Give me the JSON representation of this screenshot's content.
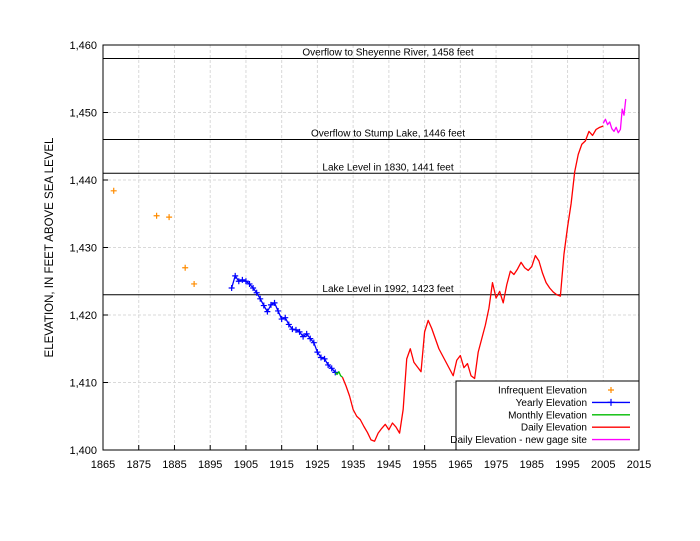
{
  "chart_data": {
    "type": "line",
    "title": "",
    "xlabel": "",
    "ylabel": "ELEVATION, IN FEET ABOVE SEA LEVEL",
    "xlim": [
      1865,
      2015
    ],
    "ylim": [
      1400,
      1460
    ],
    "x_ticks": [
      "1865",
      "1875",
      "1885",
      "1895",
      "1905",
      "1915",
      "1925",
      "1935",
      "1945",
      "1955",
      "1965",
      "1975",
      "1985",
      "1995",
      "2005",
      "2015"
    ],
    "y_ticks": [
      "1,400",
      "1,410",
      "1,420",
      "1,430",
      "1,440",
      "1,450",
      "1,460"
    ],
    "grid": true,
    "legend_position": "bottom-right",
    "reference_lines": [
      {
        "y": 1458,
        "label": "Overflow to Sheyenne River, 1458 feet"
      },
      {
        "y": 1446,
        "label": "Overflow to Stump Lake, 1446 feet"
      },
      {
        "y": 1441,
        "label": "Lake Level in 1830, 1441 feet"
      },
      {
        "y": 1423,
        "label": "Lake Level in 1992, 1423 feet"
      }
    ],
    "series": [
      {
        "name": "Infrequent Elevation",
        "color": "#ff8c00",
        "style": "plus-markers",
        "x": [
          1868,
          1880,
          1883.5,
          1888,
          1890.5
        ],
        "y": [
          1438.4,
          1434.7,
          1434.5,
          1427.0,
          1424.6
        ]
      },
      {
        "name": "Yearly Elevation",
        "color": "#0000ff",
        "style": "line-plus",
        "x": [
          1901,
          1902,
          1903,
          1904,
          1905,
          1906,
          1907,
          1908,
          1909,
          1910,
          1911,
          1912,
          1913,
          1914,
          1915,
          1916,
          1917,
          1918,
          1919,
          1920,
          1921,
          1922,
          1923,
          1924,
          1925,
          1926,
          1927,
          1928,
          1929,
          1930
        ],
        "y": [
          1424.0,
          1425.8,
          1425.0,
          1425.2,
          1425.0,
          1424.6,
          1424.0,
          1423.3,
          1422.4,
          1421.4,
          1420.5,
          1421.5,
          1421.8,
          1420.6,
          1419.4,
          1419.6,
          1418.6,
          1417.9,
          1417.8,
          1417.5,
          1416.8,
          1417.2,
          1416.5,
          1415.9,
          1414.5,
          1413.7,
          1413.5,
          1412.6,
          1412.1,
          1411.5
        ]
      },
      {
        "name": "Monthly Elevation",
        "color": "#00bb00",
        "style": "line",
        "x": [
          1930,
          1930.5,
          1931,
          1931.5,
          1932
        ],
        "y": [
          1411.5,
          1411.2,
          1411.6,
          1411.0,
          1410.8
        ]
      },
      {
        "name": "Daily Elevation",
        "color": "#ff0000",
        "style": "line",
        "x": [
          1932,
          1933,
          1934,
          1935,
          1936,
          1937,
          1938,
          1939,
          1940,
          1941,
          1942,
          1943,
          1944,
          1945,
          1946,
          1947,
          1948,
          1949,
          1950,
          1951,
          1952,
          1953,
          1954,
          1955,
          1956,
          1957,
          1958,
          1959,
          1960,
          1961,
          1962,
          1963,
          1964,
          1965,
          1966,
          1967,
          1968,
          1969,
          1970,
          1971,
          1972,
          1973,
          1974,
          1975,
          1976,
          1977,
          1978,
          1979,
          1980,
          1981,
          1982,
          1983,
          1984,
          1985,
          1986,
          1987,
          1988,
          1989,
          1990,
          1991,
          1992,
          1993,
          1994,
          1995,
          1996,
          1997,
          1998,
          1999,
          2000,
          2001,
          2002,
          2003,
          2004,
          2005
        ],
        "y": [
          1410.8,
          1409.5,
          1408.0,
          1406.0,
          1405.0,
          1404.5,
          1403.5,
          1402.6,
          1401.5,
          1401.3,
          1402.5,
          1403.2,
          1403.8,
          1403.0,
          1404.0,
          1403.4,
          1402.5,
          1406.0,
          1413.5,
          1415.0,
          1413.0,
          1412.3,
          1411.6,
          1417.5,
          1419.2,
          1418.0,
          1416.5,
          1415.0,
          1414.0,
          1413.0,
          1412.0,
          1411.0,
          1413.3,
          1414.0,
          1412.2,
          1412.8,
          1411.0,
          1410.6,
          1414.5,
          1416.5,
          1418.5,
          1421.0,
          1424.8,
          1422.5,
          1423.5,
          1421.8,
          1424.5,
          1426.5,
          1426.0,
          1426.8,
          1427.8,
          1427.0,
          1426.6,
          1427.2,
          1428.8,
          1428.0,
          1426.2,
          1424.8,
          1424.0,
          1423.4,
          1423.0,
          1422.8,
          1429.0,
          1433.0,
          1436.5,
          1441.2,
          1443.8,
          1445.3,
          1445.8,
          1447.2,
          1446.6,
          1447.5,
          1447.8,
          1448.0
        ]
      },
      {
        "name": "Daily Elevation - new gage site",
        "color": "#ff00ff",
        "style": "line",
        "x": [
          2005,
          2005.6,
          2006.2,
          2006.8,
          2007.4,
          2008.0,
          2008.6,
          2009.2,
          2009.8,
          2010.3,
          2010.8,
          2011.3
        ],
        "y": [
          1448.4,
          1449.0,
          1448.2,
          1448.6,
          1447.6,
          1447.2,
          1447.8,
          1447.0,
          1447.5,
          1450.5,
          1449.6,
          1452.0
        ]
      }
    ]
  }
}
